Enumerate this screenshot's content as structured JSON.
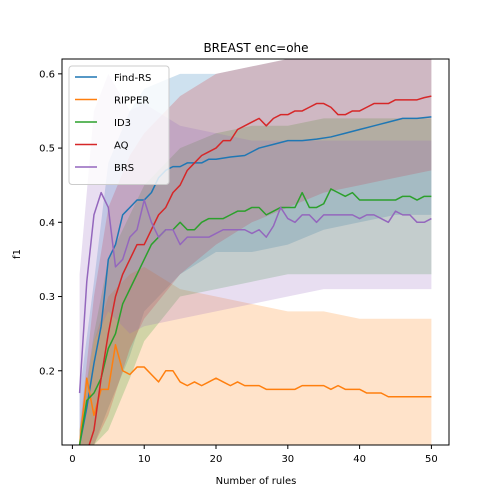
{
  "chart_data": {
    "type": "line",
    "title": "BREAST enc=ohe",
    "xlabel": "Number of rules",
    "ylabel": "f1",
    "xlim": [
      -1.45,
      52.45
    ],
    "ylim": [
      0.1,
      0.62
    ],
    "xticks": [
      0,
      10,
      20,
      30,
      40,
      50
    ],
    "yticks": [
      0.2,
      0.3,
      0.4,
      0.5,
      0.6
    ],
    "xtick_labels": [
      "0",
      "10",
      "20",
      "30",
      "40",
      "50"
    ],
    "ytick_labels": [
      "0.2",
      "0.3",
      "0.4",
      "0.5",
      "0.6"
    ],
    "grid": false,
    "legend_position": "top-left",
    "band_opacity": 0.22,
    "series": [
      {
        "name": "Find-RS",
        "color": "#1f77b4",
        "x": [
          1,
          2,
          3,
          4,
          5,
          6,
          7,
          8,
          9,
          10,
          11,
          12,
          13,
          14,
          15,
          16,
          17,
          18,
          19,
          20,
          22,
          24,
          26,
          28,
          30,
          32,
          34,
          36,
          38,
          40,
          42,
          44,
          46,
          48,
          50
        ],
        "y": [
          0.1,
          0.15,
          0.21,
          0.26,
          0.35,
          0.37,
          0.41,
          0.42,
          0.43,
          0.43,
          0.44,
          0.46,
          0.47,
          0.475,
          0.475,
          0.48,
          0.48,
          0.48,
          0.485,
          0.485,
          0.488,
          0.49,
          0.5,
          0.505,
          0.51,
          0.51,
          0.512,
          0.515,
          0.52,
          0.525,
          0.53,
          0.535,
          0.54,
          0.54,
          0.542
        ],
        "band_x": [
          1,
          3,
          5,
          8,
          10,
          15,
          20,
          25,
          30,
          35,
          40,
          45,
          50
        ],
        "band_low": [
          0.09,
          0.1,
          0.15,
          0.22,
          0.28,
          0.33,
          0.36,
          0.36,
          0.37,
          0.39,
          0.4,
          0.41,
          0.41
        ],
        "band_high": [
          0.17,
          0.32,
          0.48,
          0.55,
          0.58,
          0.6,
          0.6,
          0.61,
          0.62,
          0.62,
          0.62,
          0.62,
          0.62
        ]
      },
      {
        "name": "RIPPER",
        "color": "#ff7f0e",
        "x": [
          1,
          2,
          3,
          4,
          5,
          6,
          7,
          8,
          9,
          10,
          11,
          12,
          13,
          14,
          15,
          16,
          17,
          18,
          19,
          20,
          21,
          22,
          23,
          24,
          25,
          26,
          27,
          28,
          29,
          30,
          31,
          32,
          33,
          34,
          35,
          36,
          37,
          38,
          39,
          40,
          41,
          42,
          43,
          44,
          45,
          46,
          47,
          48,
          49,
          50
        ],
        "y": [
          0.1,
          0.19,
          0.14,
          0.175,
          0.175,
          0.235,
          0.2,
          0.195,
          0.205,
          0.205,
          0.195,
          0.185,
          0.2,
          0.2,
          0.185,
          0.18,
          0.185,
          0.18,
          0.185,
          0.19,
          0.185,
          0.18,
          0.185,
          0.18,
          0.18,
          0.18,
          0.175,
          0.175,
          0.175,
          0.175,
          0.175,
          0.18,
          0.18,
          0.18,
          0.18,
          0.175,
          0.18,
          0.175,
          0.175,
          0.175,
          0.17,
          0.17,
          0.17,
          0.165,
          0.165,
          0.165,
          0.165,
          0.165,
          0.165,
          0.165
        ],
        "band_x": [
          1,
          3,
          5,
          8,
          10,
          15,
          20,
          25,
          30,
          35,
          40,
          45,
          50
        ],
        "band_low": [
          0.1,
          0.1,
          0.1,
          0.1,
          0.1,
          0.1,
          0.1,
          0.1,
          0.1,
          0.1,
          0.1,
          0.1,
          0.1
        ],
        "band_high": [
          0.12,
          0.24,
          0.3,
          0.33,
          0.34,
          0.31,
          0.3,
          0.29,
          0.28,
          0.28,
          0.27,
          0.27,
          0.27
        ]
      },
      {
        "name": "ID3",
        "color": "#2ca02c",
        "x": [
          1,
          2,
          3,
          4,
          5,
          6,
          7,
          8,
          9,
          10,
          11,
          12,
          13,
          14,
          15,
          16,
          17,
          18,
          19,
          20,
          21,
          22,
          23,
          24,
          25,
          26,
          27,
          28,
          29,
          30,
          31,
          32,
          33,
          34,
          35,
          36,
          37,
          38,
          39,
          40,
          41,
          42,
          43,
          44,
          45,
          46,
          47,
          48,
          49,
          50
        ],
        "y": [
          0.1,
          0.16,
          0.17,
          0.19,
          0.23,
          0.25,
          0.29,
          0.31,
          0.33,
          0.35,
          0.37,
          0.38,
          0.39,
          0.39,
          0.4,
          0.39,
          0.39,
          0.4,
          0.405,
          0.405,
          0.405,
          0.41,
          0.415,
          0.415,
          0.42,
          0.42,
          0.41,
          0.415,
          0.42,
          0.42,
          0.42,
          0.44,
          0.42,
          0.42,
          0.425,
          0.445,
          0.44,
          0.435,
          0.44,
          0.43,
          0.43,
          0.43,
          0.43,
          0.43,
          0.43,
          0.435,
          0.435,
          0.43,
          0.435,
          0.435
        ],
        "band_x": [
          1,
          3,
          5,
          8,
          10,
          15,
          20,
          25,
          30,
          35,
          40,
          45,
          50
        ],
        "band_low": [
          0.1,
          0.1,
          0.12,
          0.19,
          0.24,
          0.3,
          0.31,
          0.32,
          0.33,
          0.33,
          0.33,
          0.33,
          0.33
        ],
        "band_high": [
          0.12,
          0.25,
          0.35,
          0.41,
          0.45,
          0.5,
          0.52,
          0.53,
          0.53,
          0.54,
          0.54,
          0.54,
          0.54
        ]
      },
      {
        "name": "AQ",
        "color": "#d62728",
        "x": [
          1,
          2,
          3,
          4,
          5,
          6,
          7,
          8,
          9,
          10,
          11,
          12,
          13,
          14,
          15,
          16,
          17,
          18,
          19,
          20,
          21,
          22,
          23,
          24,
          25,
          26,
          27,
          28,
          29,
          30,
          31,
          32,
          33,
          34,
          35,
          36,
          37,
          38,
          39,
          40,
          41,
          42,
          43,
          44,
          45,
          46,
          47,
          48,
          49,
          50
        ],
        "y": [
          0.1,
          0.09,
          0.12,
          0.19,
          0.25,
          0.3,
          0.33,
          0.35,
          0.37,
          0.37,
          0.39,
          0.41,
          0.42,
          0.44,
          0.45,
          0.47,
          0.48,
          0.49,
          0.495,
          0.5,
          0.51,
          0.51,
          0.525,
          0.53,
          0.535,
          0.54,
          0.53,
          0.54,
          0.545,
          0.545,
          0.55,
          0.55,
          0.555,
          0.56,
          0.56,
          0.555,
          0.545,
          0.545,
          0.55,
          0.55,
          0.555,
          0.56,
          0.56,
          0.56,
          0.565,
          0.565,
          0.565,
          0.565,
          0.568,
          0.57
        ],
        "band_x": [
          1,
          3,
          5,
          8,
          10,
          15,
          20,
          25,
          30,
          35,
          40,
          45,
          50
        ],
        "band_low": [
          0.1,
          0.1,
          0.14,
          0.23,
          0.27,
          0.33,
          0.37,
          0.4,
          0.42,
          0.44,
          0.45,
          0.46,
          0.47
        ],
        "band_high": [
          0.12,
          0.3,
          0.42,
          0.49,
          0.52,
          0.57,
          0.6,
          0.61,
          0.62,
          0.62,
          0.62,
          0.62,
          0.62
        ]
      },
      {
        "name": "BRS",
        "color": "#9467bd",
        "x": [
          1,
          2,
          3,
          4,
          5,
          6,
          7,
          8,
          9,
          10,
          11,
          12,
          13,
          14,
          15,
          16,
          17,
          18,
          19,
          20,
          21,
          22,
          23,
          24,
          25,
          26,
          27,
          28,
          29,
          30,
          31,
          32,
          33,
          34,
          35,
          36,
          37,
          38,
          39,
          40,
          41,
          42,
          43,
          44,
          45,
          46,
          47,
          48,
          49,
          50
        ],
        "y": [
          0.17,
          0.32,
          0.41,
          0.44,
          0.42,
          0.34,
          0.35,
          0.38,
          0.39,
          0.43,
          0.4,
          0.38,
          0.39,
          0.39,
          0.37,
          0.38,
          0.38,
          0.38,
          0.38,
          0.385,
          0.39,
          0.39,
          0.39,
          0.39,
          0.385,
          0.39,
          0.38,
          0.395,
          0.42,
          0.405,
          0.4,
          0.41,
          0.41,
          0.4,
          0.41,
          0.41,
          0.41,
          0.41,
          0.41,
          0.405,
          0.41,
          0.41,
          0.405,
          0.4,
          0.415,
          0.41,
          0.41,
          0.4,
          0.4,
          0.405
        ],
        "band_x": [
          1,
          3,
          5,
          8,
          10,
          15,
          20,
          25,
          30,
          35,
          40,
          45,
          50
        ],
        "band_low": [
          0.12,
          0.24,
          0.28,
          0.25,
          0.26,
          0.27,
          0.28,
          0.29,
          0.3,
          0.31,
          0.31,
          0.31,
          0.31
        ],
        "band_high": [
          0.33,
          0.55,
          0.6,
          0.55,
          0.56,
          0.53,
          0.52,
          0.51,
          0.51,
          0.51,
          0.51,
          0.51,
          0.51
        ]
      }
    ]
  }
}
